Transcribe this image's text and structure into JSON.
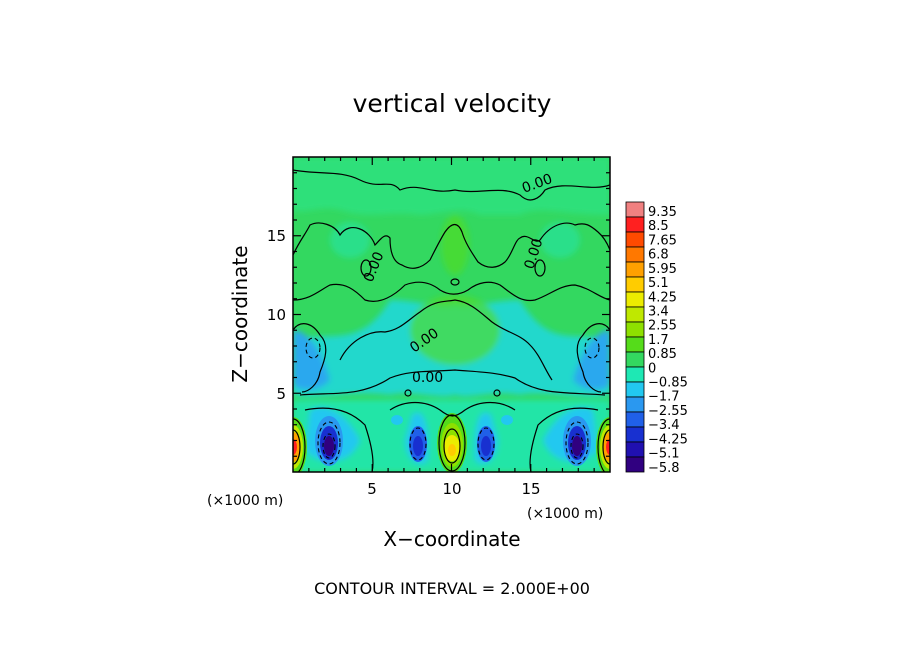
{
  "chart_data": {
    "type": "heatmap",
    "title": "vertical velocity",
    "xlabel": "X−coordinate",
    "ylabel": "Z−coordinate",
    "x_unit_label": "(×1000 m)",
    "y_unit_label": "(×1000 m)",
    "xlim": [
      0,
      20
    ],
    "ylim": [
      0,
      20
    ],
    "x_ticks": [
      5,
      10,
      15
    ],
    "y_ticks": [
      5,
      10,
      15
    ],
    "colorbar": {
      "labels": [
        "9.35",
        "8.5",
        "7.65",
        "6.8",
        "5.95",
        "5.1",
        "4.25",
        "3.4",
        "2.55",
        "1.7",
        "0.85",
        "0",
        "−0.85",
        "−1.7",
        "−2.55",
        "−3.4",
        "−4.25",
        "−5.1",
        "−5.8"
      ],
      "colors": [
        "#f08080",
        "#ff2020",
        "#ff4a00",
        "#ff7800",
        "#ffa000",
        "#ffcc00",
        "#ecec00",
        "#bfe800",
        "#8ee000",
        "#55dc1a",
        "#33d860",
        "#1ee8b4",
        "#22c8f0",
        "#2a98f0",
        "#2060e8",
        "#1830d0",
        "#2010b0",
        "#300080"
      ],
      "range": [
        -5.8,
        9.35
      ]
    },
    "contour_labels": [
      "0.00",
      "0.00",
      "0.00",
      "0.00",
      "0.00"
    ],
    "footer": "CONTOUR INTERVAL = 2.000E+00"
  }
}
